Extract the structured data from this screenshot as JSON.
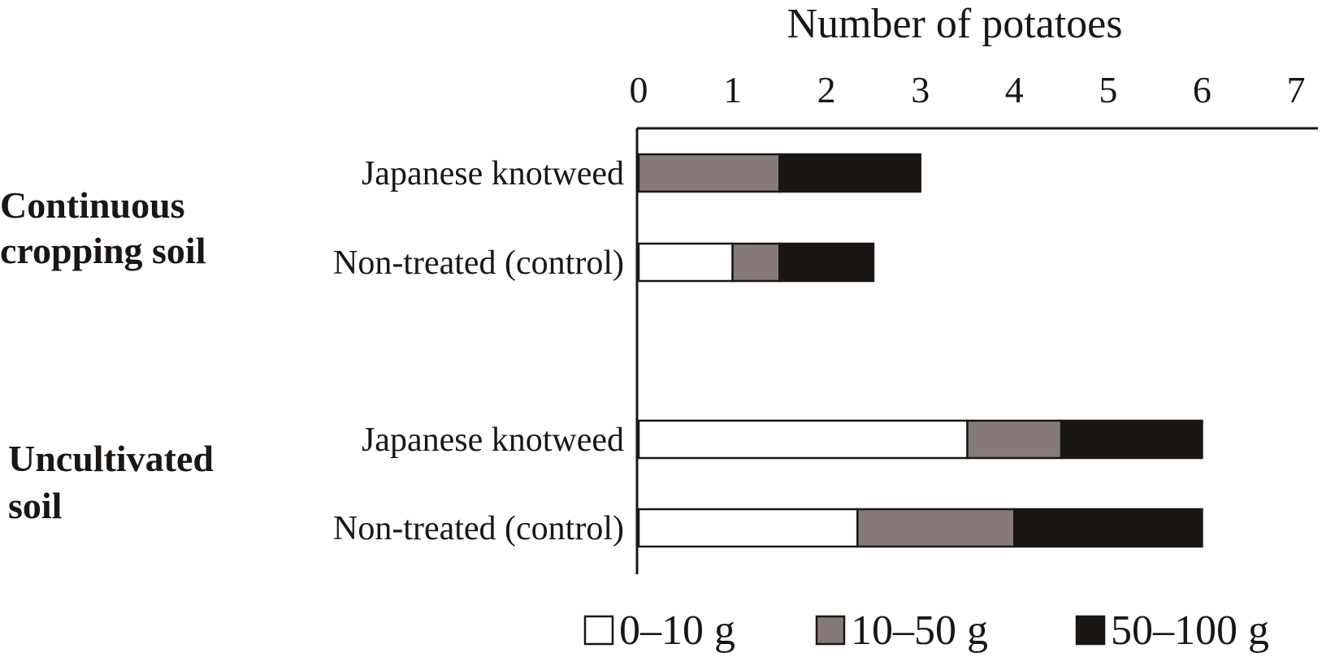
{
  "chart_data": {
    "type": "bar",
    "orientation": "horizontal",
    "stacked": true,
    "xlabel": "Number of potatoes",
    "xlim": [
      0,
      7
    ],
    "xticks": [
      "0",
      "1",
      "2",
      "3",
      "4",
      "5",
      "6",
      "7"
    ],
    "groups": [
      {
        "label": "Continuous cropping soil",
        "categories": [
          "Japanese knotweed",
          "Non-treated (control)"
        ]
      },
      {
        "label": "Uncultivated soil",
        "categories": [
          "Japanese knotweed",
          "Non-treated (control)"
        ]
      }
    ],
    "categories": [
      "Japanese knotweed",
      "Non-treated (control)",
      "Japanese knotweed",
      "Non-treated (control)"
    ],
    "series": [
      {
        "name": "0–10 g",
        "color": "#ffffff",
        "values": [
          0,
          1,
          3.5,
          2.33
        ]
      },
      {
        "name": "10–50 g",
        "color": "#857a78",
        "values": [
          1.5,
          0.5,
          1,
          1.67
        ]
      },
      {
        "name": "50–100 g",
        "color": "#1a1614",
        "values": [
          1.5,
          1,
          1.5,
          2
        ]
      }
    ],
    "legend_position": "bottom",
    "grid": false
  }
}
